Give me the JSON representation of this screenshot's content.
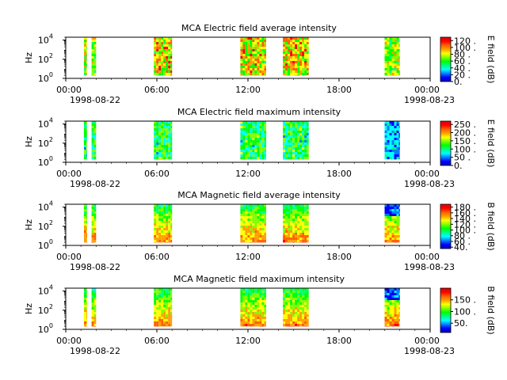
{
  "figure": {
    "colors": {
      "colormap": [
        "#0000c0",
        "#0000ff",
        "#0080ff",
        "#00ffff",
        "#00ff80",
        "#00ff00",
        "#80ff00",
        "#ffff00",
        "#ffa000",
        "#ff6000",
        "#ff0000",
        "#e00000"
      ]
    }
  },
  "chart_data": [
    {
      "type": "heatmap",
      "title": "MCA  Electric field average intensity",
      "ylabel": "Hz",
      "yticks": [
        "10^4",
        "10^2",
        "10^0"
      ],
      "ylim": [
        1,
        20000
      ],
      "yscale": "log",
      "xticks": [
        "00:00",
        "06:00",
        "12:00",
        "18:00",
        "00:00"
      ],
      "xdates": [
        "1998-08-22",
        "1998-08-23"
      ],
      "xlim_hours": [
        0,
        24
      ],
      "colorbar": {
        "label": "E field (dB)",
        "ticks": [
          "120",
          "100",
          "80",
          "60",
          "40",
          "20",
          "0"
        ],
        "range": [
          0,
          130
        ]
      },
      "data_intervals_hours": [
        [
          1.2,
          1.4
        ],
        [
          1.7,
          2.0
        ],
        [
          5.8,
          7.0
        ],
        [
          11.5,
          13.2
        ],
        [
          14.3,
          16.0
        ],
        [
          21.0,
          22.0
        ]
      ]
    },
    {
      "type": "heatmap",
      "title": "MCA  Electric field maximum intensity",
      "ylabel": "Hz",
      "yticks": [
        "10^4",
        "10^2",
        "10^0"
      ],
      "ylim": [
        1,
        20000
      ],
      "yscale": "log",
      "xticks": [
        "00:00",
        "06:00",
        "12:00",
        "18:00",
        "00:00"
      ],
      "xdates": [
        "1998-08-22",
        "1998-08-23"
      ],
      "xlim_hours": [
        0,
        24
      ],
      "colorbar": {
        "label": "E field (dB)",
        "ticks": [
          "250",
          "200",
          "150",
          "100",
          "50",
          "0"
        ],
        "range": [
          0,
          270
        ]
      },
      "data_intervals_hours": [
        [
          1.2,
          1.4
        ],
        [
          1.7,
          2.0
        ],
        [
          5.8,
          7.0
        ],
        [
          11.5,
          13.2
        ],
        [
          14.3,
          16.0
        ],
        [
          21.0,
          22.0
        ]
      ]
    },
    {
      "type": "heatmap",
      "title": "MCA  Magnetic field average intensity",
      "ylabel": "Hz",
      "yticks": [
        "10^4",
        "10^2",
        "10^0"
      ],
      "ylim": [
        1,
        20000
      ],
      "yscale": "log",
      "xticks": [
        "00:00",
        "06:00",
        "12:00",
        "18:00",
        "00:00"
      ],
      "xdates": [
        "1998-08-22",
        "1998-08-23"
      ],
      "xlim_hours": [
        0,
        24
      ],
      "colorbar": {
        "label": "B field (dB)",
        "ticks": [
          "180",
          "160",
          "140",
          "120",
          "100",
          "80",
          "60",
          "40"
        ],
        "range": [
          35,
          190
        ]
      },
      "data_intervals_hours": [
        [
          1.2,
          1.4
        ],
        [
          1.7,
          2.0
        ],
        [
          5.8,
          7.0
        ],
        [
          11.5,
          13.2
        ],
        [
          14.3,
          16.0
        ],
        [
          21.0,
          22.0
        ]
      ]
    },
    {
      "type": "heatmap",
      "title": "MCA  Magnetic field maximum intensity",
      "ylabel": "Hz",
      "yticks": [
        "10^4",
        "10^2",
        "10^0"
      ],
      "ylim": [
        1,
        20000
      ],
      "yscale": "log",
      "xticks": [
        "00:00",
        "06:00",
        "12:00",
        "18:00",
        "00:00"
      ],
      "xdates": [
        "1998-08-22",
        "1998-08-23"
      ],
      "xlim_hours": [
        0,
        24
      ],
      "colorbar": {
        "label": "B field (dB)",
        "ticks": [
          "150",
          "100",
          "50"
        ],
        "range": [
          10,
          200
        ]
      },
      "data_intervals_hours": [
        [
          1.2,
          1.4
        ],
        [
          1.7,
          2.0
        ],
        [
          5.8,
          7.0
        ],
        [
          11.5,
          13.2
        ],
        [
          14.3,
          16.0
        ],
        [
          21.0,
          22.0
        ]
      ]
    }
  ]
}
